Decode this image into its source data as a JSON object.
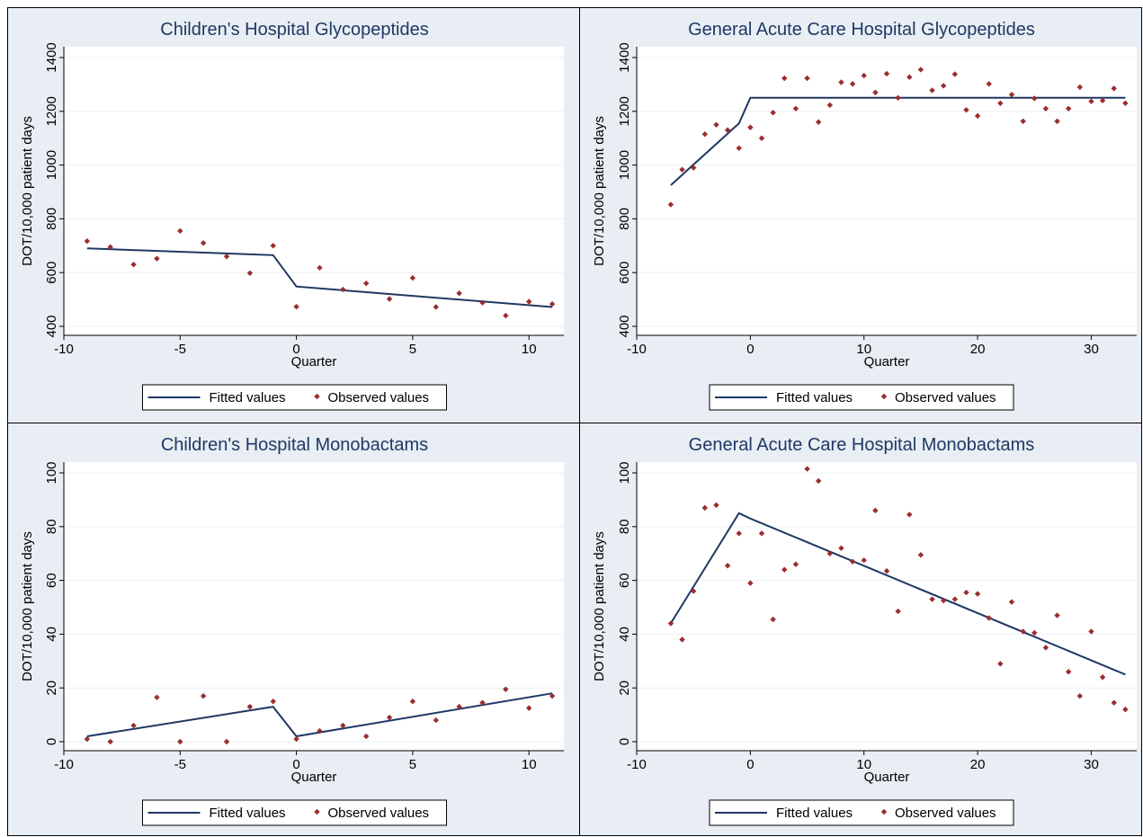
{
  "colors": {
    "panel_bg": "#e8eef3",
    "plot_bg": "#ffffff",
    "grid": "#eaf0f3",
    "fitted_line": "#1f3864",
    "observed_marker": "#9b2d30",
    "title": "#1f3864"
  },
  "chart_data": [
    {
      "type": "scatter",
      "title": "Children's Hospital Glycopeptides",
      "xlabel": "Quarter",
      "ylabel": "DOT/10,000 patient days",
      "xlim": [
        -10,
        11.5
      ],
      "ylim": [
        400,
        1400
      ],
      "xticks": [
        -10,
        -5,
        0,
        5,
        10
      ],
      "yticks": [
        400,
        600,
        800,
        1000,
        1200,
        1400
      ],
      "legend": [
        "Fitted values",
        "Observed values"
      ],
      "legend_position": "bottom",
      "grid": true,
      "fitted": [
        {
          "x": -9,
          "y": 690
        },
        {
          "x": -1,
          "y": 665
        },
        {
          "x": 0,
          "y": 548
        },
        {
          "x": 11,
          "y": 472
        }
      ],
      "observed": [
        {
          "x": -9,
          "y": 717
        },
        {
          "x": -8,
          "y": 695
        },
        {
          "x": -7,
          "y": 630
        },
        {
          "x": -6,
          "y": 652
        },
        {
          "x": -5,
          "y": 755
        },
        {
          "x": -4,
          "y": 710
        },
        {
          "x": -3,
          "y": 660
        },
        {
          "x": -2,
          "y": 598
        },
        {
          "x": -1,
          "y": 700
        },
        {
          "x": 0,
          "y": 473
        },
        {
          "x": 1,
          "y": 618
        },
        {
          "x": 2,
          "y": 537
        },
        {
          "x": 3,
          "y": 560
        },
        {
          "x": 4,
          "y": 502
        },
        {
          "x": 5,
          "y": 580
        },
        {
          "x": 6,
          "y": 472
        },
        {
          "x": 7,
          "y": 523
        },
        {
          "x": 8,
          "y": 488
        },
        {
          "x": 9,
          "y": 440
        },
        {
          "x": 10,
          "y": 492
        },
        {
          "x": 11,
          "y": 483
        }
      ]
    },
    {
      "type": "scatter",
      "title": "General Acute Care Hospital Glycopeptides",
      "xlabel": "Quarter",
      "ylabel": "DOT/10,000 patient days",
      "xlim": [
        -10,
        34
      ],
      "ylim": [
        400,
        1400
      ],
      "xticks": [
        -10,
        0,
        10,
        20,
        30
      ],
      "yticks": [
        400,
        600,
        800,
        1000,
        1200,
        1400
      ],
      "legend": [
        "Fitted values",
        "Observed values"
      ],
      "legend_position": "bottom",
      "grid": true,
      "fitted": [
        {
          "x": -7,
          "y": 925
        },
        {
          "x": -1,
          "y": 1155
        },
        {
          "x": 0,
          "y": 1250
        },
        {
          "x": 33,
          "y": 1250
        }
      ],
      "observed": [
        {
          "x": -7,
          "y": 853
        },
        {
          "x": -6,
          "y": 983
        },
        {
          "x": -5,
          "y": 990
        },
        {
          "x": -4,
          "y": 1115
        },
        {
          "x": -3,
          "y": 1150
        },
        {
          "x": -2,
          "y": 1130
        },
        {
          "x": -1,
          "y": 1063
        },
        {
          "x": 0,
          "y": 1140
        },
        {
          "x": 1,
          "y": 1100
        },
        {
          "x": 2,
          "y": 1195
        },
        {
          "x": 3,
          "y": 1323
        },
        {
          "x": 4,
          "y": 1210
        },
        {
          "x": 5,
          "y": 1323
        },
        {
          "x": 6,
          "y": 1160
        },
        {
          "x": 7,
          "y": 1223
        },
        {
          "x": 8,
          "y": 1308
        },
        {
          "x": 9,
          "y": 1302
        },
        {
          "x": 10,
          "y": 1333
        },
        {
          "x": 11,
          "y": 1270
        },
        {
          "x": 12,
          "y": 1340
        },
        {
          "x": 13,
          "y": 1250
        },
        {
          "x": 14,
          "y": 1327
        },
        {
          "x": 15,
          "y": 1355
        },
        {
          "x": 16,
          "y": 1278
        },
        {
          "x": 17,
          "y": 1295
        },
        {
          "x": 18,
          "y": 1338
        },
        {
          "x": 19,
          "y": 1205
        },
        {
          "x": 20,
          "y": 1183
        },
        {
          "x": 21,
          "y": 1302
        },
        {
          "x": 22,
          "y": 1230
        },
        {
          "x": 23,
          "y": 1262
        },
        {
          "x": 24,
          "y": 1163
        },
        {
          "x": 25,
          "y": 1248
        },
        {
          "x": 26,
          "y": 1210
        },
        {
          "x": 27,
          "y": 1163
        },
        {
          "x": 28,
          "y": 1210
        },
        {
          "x": 29,
          "y": 1290
        },
        {
          "x": 30,
          "y": 1237
        },
        {
          "x": 31,
          "y": 1240
        },
        {
          "x": 32,
          "y": 1285
        },
        {
          "x": 33,
          "y": 1230
        }
      ]
    },
    {
      "type": "scatter",
      "title": "Children's Hospital Monobactams",
      "xlabel": "Quarter",
      "ylabel": "DOT/10,000 patient days",
      "xlim": [
        -10,
        11.5
      ],
      "ylim": [
        0,
        100
      ],
      "xticks": [
        -10,
        -5,
        0,
        5,
        10
      ],
      "yticks": [
        0,
        20,
        40,
        60,
        80,
        100
      ],
      "legend": [
        "Fitted values",
        "Observed values"
      ],
      "legend_position": "bottom",
      "grid": true,
      "fitted": [
        {
          "x": -9,
          "y": 2
        },
        {
          "x": -1,
          "y": 13
        },
        {
          "x": 0,
          "y": 2
        },
        {
          "x": 11,
          "y": 18
        }
      ],
      "observed": [
        {
          "x": -9,
          "y": 1
        },
        {
          "x": -8,
          "y": 0
        },
        {
          "x": -7,
          "y": 6
        },
        {
          "x": -6,
          "y": 16.5
        },
        {
          "x": -5,
          "y": 0
        },
        {
          "x": -4,
          "y": 17
        },
        {
          "x": -3,
          "y": 0
        },
        {
          "x": -2,
          "y": 13
        },
        {
          "x": -1,
          "y": 15
        },
        {
          "x": 0,
          "y": 1
        },
        {
          "x": 1,
          "y": 4
        },
        {
          "x": 2,
          "y": 6
        },
        {
          "x": 3,
          "y": 2
        },
        {
          "x": 4,
          "y": 9
        },
        {
          "x": 5,
          "y": 15
        },
        {
          "x": 6,
          "y": 8
        },
        {
          "x": 7,
          "y": 13
        },
        {
          "x": 8,
          "y": 14.5
        },
        {
          "x": 9,
          "y": 19.5
        },
        {
          "x": 10,
          "y": 12.5
        },
        {
          "x": 11,
          "y": 17
        }
      ]
    },
    {
      "type": "scatter",
      "title": "General Acute Care Hospital Monobactams",
      "xlabel": "Quarter",
      "ylabel": "DOT/10,000 patient days",
      "xlim": [
        -10,
        34
      ],
      "ylim": [
        0,
        100
      ],
      "xticks": [
        -10,
        0,
        10,
        20,
        30
      ],
      "yticks": [
        0,
        20,
        40,
        60,
        80,
        100
      ],
      "legend": [
        "Fitted values",
        "Observed values"
      ],
      "legend_position": "bottom",
      "grid": true,
      "fitted": [
        {
          "x": -7,
          "y": 44
        },
        {
          "x": -1,
          "y": 85
        },
        {
          "x": 0,
          "y": 83
        },
        {
          "x": 33,
          "y": 25
        }
      ],
      "observed": [
        {
          "x": -7,
          "y": 44
        },
        {
          "x": -6,
          "y": 38
        },
        {
          "x": -5,
          "y": 56
        },
        {
          "x": -4,
          "y": 87
        },
        {
          "x": -3,
          "y": 88
        },
        {
          "x": -2,
          "y": 65.5
        },
        {
          "x": -1,
          "y": 77.5
        },
        {
          "x": 0,
          "y": 59
        },
        {
          "x": 1,
          "y": 77.5
        },
        {
          "x": 2,
          "y": 45.5
        },
        {
          "x": 3,
          "y": 64
        },
        {
          "x": 4,
          "y": 66
        },
        {
          "x": 5,
          "y": 101.5
        },
        {
          "x": 6,
          "y": 97
        },
        {
          "x": 7,
          "y": 70
        },
        {
          "x": 8,
          "y": 72
        },
        {
          "x": 9,
          "y": 67
        },
        {
          "x": 10,
          "y": 67.5
        },
        {
          "x": 11,
          "y": 86
        },
        {
          "x": 12,
          "y": 63.5
        },
        {
          "x": 13,
          "y": 48.5
        },
        {
          "x": 14,
          "y": 84.5
        },
        {
          "x": 15,
          "y": 69.5
        },
        {
          "x": 16,
          "y": 53
        },
        {
          "x": 17,
          "y": 52.5
        },
        {
          "x": 18,
          "y": 53
        },
        {
          "x": 19,
          "y": 55.5
        },
        {
          "x": 20,
          "y": 55
        },
        {
          "x": 21,
          "y": 46
        },
        {
          "x": 22,
          "y": 29
        },
        {
          "x": 23,
          "y": 52
        },
        {
          "x": 24,
          "y": 41
        },
        {
          "x": 25,
          "y": 40.5
        },
        {
          "x": 26,
          "y": 35
        },
        {
          "x": 27,
          "y": 47
        },
        {
          "x": 28,
          "y": 26
        },
        {
          "x": 29,
          "y": 17
        },
        {
          "x": 30,
          "y": 41
        },
        {
          "x": 31,
          "y": 24
        },
        {
          "x": 32,
          "y": 14.5
        },
        {
          "x": 33,
          "y": 12
        }
      ]
    }
  ]
}
